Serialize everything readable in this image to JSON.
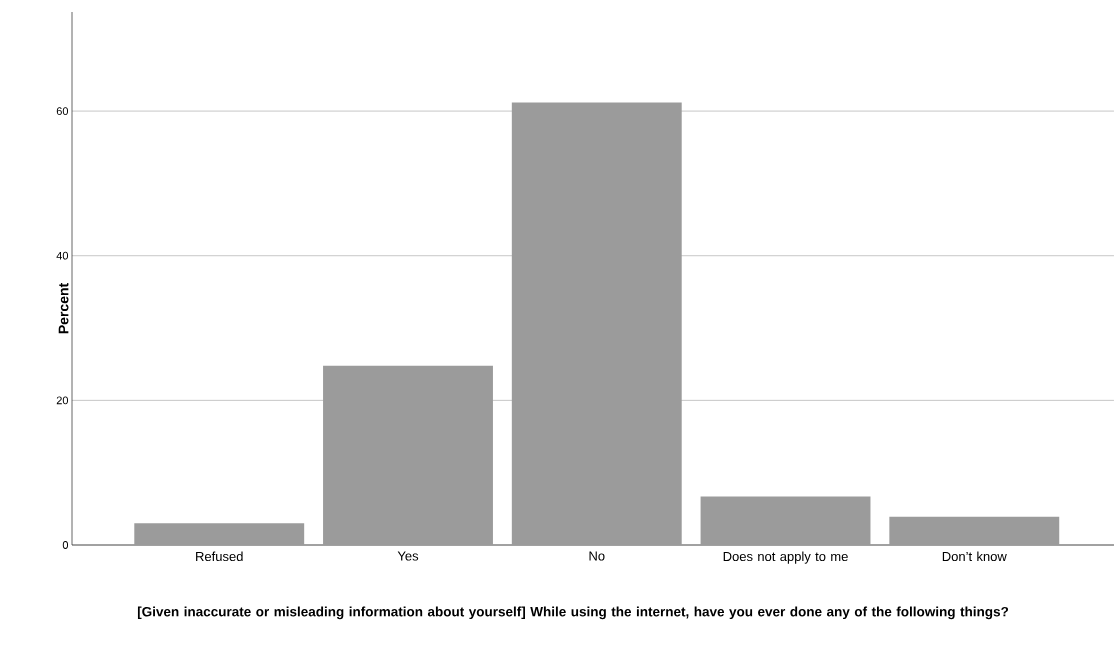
{
  "chart_data": {
    "type": "bar",
    "xlabel": "[Given inaccurate or misleading information about yourself] While using the internet, have you ever done any of the following things?",
    "ylabel": "Percent",
    "categories": [
      "Refused",
      "Yes",
      "No",
      "Does not apply to me",
      "Don’t know"
    ],
    "values": [
      3.0,
      24.8,
      61.2,
      6.7,
      3.9
    ],
    "color": "#9b9b9b",
    "ylim": [
      0,
      73.7
    ],
    "yticks": [
      0,
      20,
      40,
      60
    ],
    "grid": "y"
  }
}
